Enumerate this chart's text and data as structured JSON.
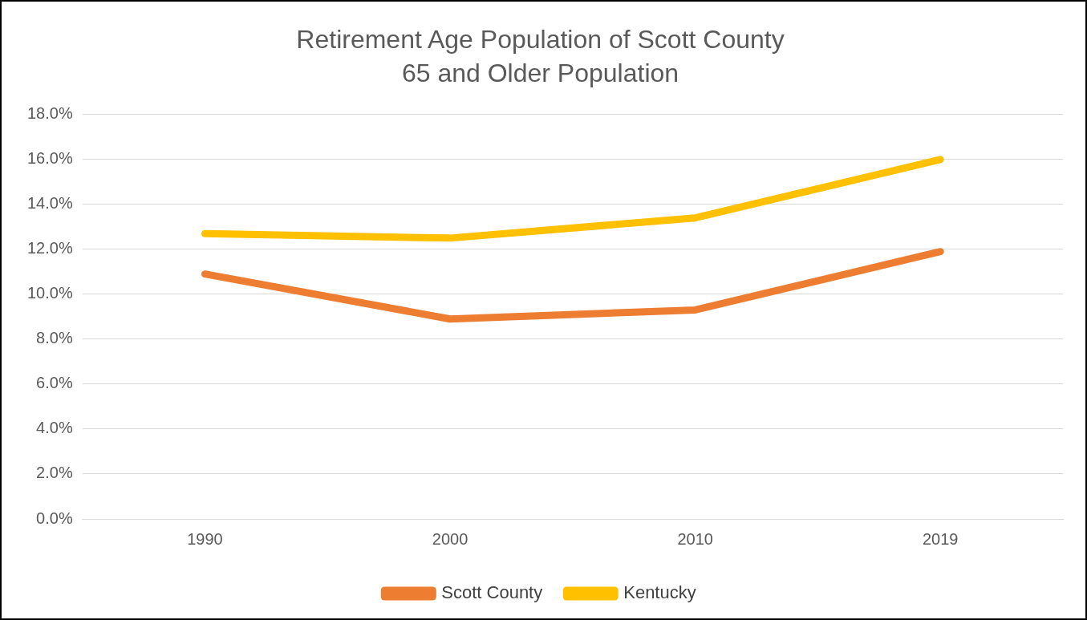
{
  "chart_data": {
    "type": "line",
    "title": "Retirement Age Population of Scott County",
    "subtitle": "65 and Older Population",
    "categories": [
      "1990",
      "2000",
      "2010",
      "2019"
    ],
    "series": [
      {
        "name": "Scott County",
        "color": "#ed7d31",
        "values": [
          10.9,
          8.9,
          9.3,
          11.9
        ]
      },
      {
        "name": "Kentucky",
        "color": "#ffc000",
        "values": [
          12.7,
          12.5,
          13.4,
          16.0
        ]
      }
    ],
    "ylim": [
      0,
      18
    ],
    "yticks": [
      {
        "value": 0,
        "label": "0.0%"
      },
      {
        "value": 2,
        "label": "2.0%"
      },
      {
        "value": 4,
        "label": "4.0%"
      },
      {
        "value": 6,
        "label": "6.0%"
      },
      {
        "value": 8,
        "label": "8.0%"
      },
      {
        "value": 10,
        "label": "10.0%"
      },
      {
        "value": 12,
        "label": "12.0%"
      },
      {
        "value": 14,
        "label": "14.0%"
      },
      {
        "value": 16,
        "label": "16.0%"
      },
      {
        "value": 18,
        "label": "18.0%"
      }
    ],
    "grid": "y",
    "legend": "bottom",
    "marker": "none",
    "line_style": "solid"
  }
}
